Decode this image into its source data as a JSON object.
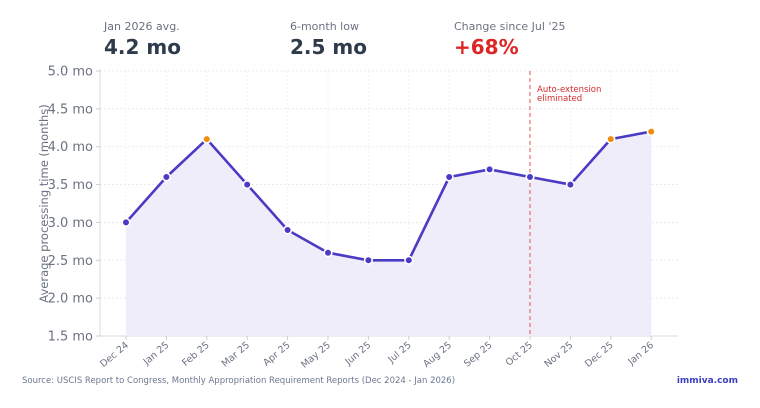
{
  "stats": [
    {
      "label": "Jan 2026 avg.",
      "value": "4.2 mo"
    },
    {
      "label": "6-month low",
      "value": "2.5 mo"
    },
    {
      "label": "Change since Jul '25",
      "value": "+68%"
    }
  ],
  "colors": {
    "line": "#4b3bc4",
    "fill": "#efedfa",
    "highlight_point": "#f28c0f",
    "annotation": "#e05252",
    "change_value": "#dc2626"
  },
  "chart_data": {
    "type": "line",
    "title": "",
    "xlabel": "",
    "ylabel": "Average processing time (months)",
    "categories": [
      "Dec 24",
      "Jan 25",
      "Feb 25",
      "Mar 25",
      "Apr 25",
      "May 25",
      "Jun 25",
      "Jul 25",
      "Aug 25",
      "Sep 25",
      "Oct 25",
      "Nov 25",
      "Dec 25",
      "Jan 26"
    ],
    "series": [
      {
        "values": [
          3.0,
          3.6,
          4.1,
          3.5,
          2.9,
          2.6,
          2.5,
          2.5,
          3.6,
          3.7,
          3.6,
          3.5,
          4.1,
          4.2
        ]
      }
    ],
    "highlight_categories": [
      "Feb 25",
      "Dec 25",
      "Jan 26"
    ],
    "ylim": [
      1.5,
      5.0
    ],
    "yticks": [
      1.5,
      2.0,
      2.5,
      3.0,
      3.5,
      4.0,
      4.5,
      5.0
    ],
    "ytick_suffix": " mo",
    "grid": true,
    "annotation": {
      "category": "Oct 25",
      "text_lines": [
        "Auto-extension",
        "eliminated"
      ]
    }
  },
  "footer": {
    "source": "Source: USCIS Report to Congress, Monthly Appropriation Requirement Reports (Dec 2024 - Jan 2026)",
    "brand": "immiva.com"
  }
}
